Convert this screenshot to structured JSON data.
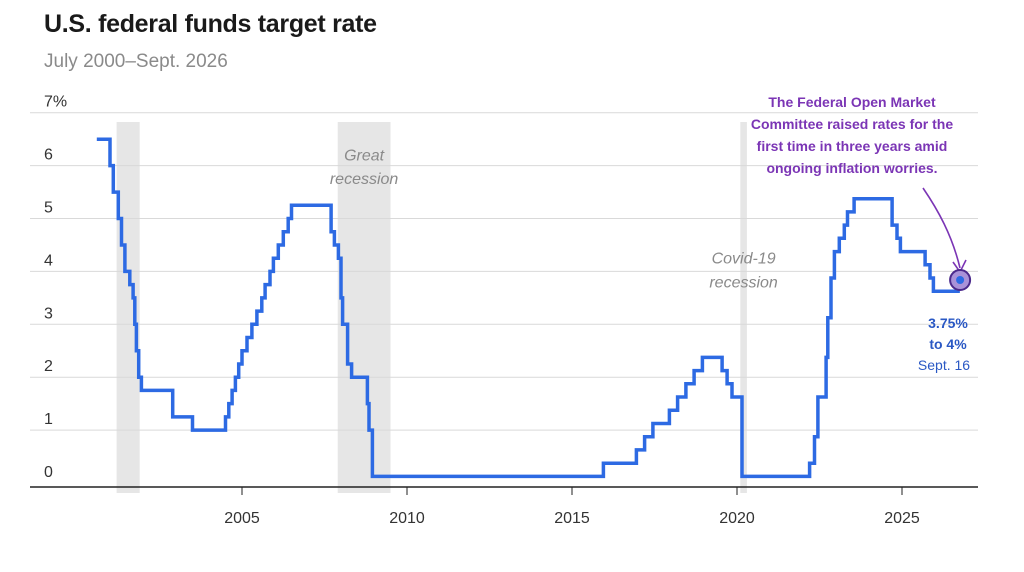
{
  "chart_data": {
    "type": "line",
    "title": "U.S. federal funds target rate",
    "subtitle": "July 2000–Sept. 2026",
    "y_ticks": [
      {
        "value": 7,
        "label": "7%"
      },
      {
        "value": 6,
        "label": "6"
      },
      {
        "value": 5,
        "label": "5"
      },
      {
        "value": 4,
        "label": "4"
      },
      {
        "value": 3,
        "label": "3"
      },
      {
        "value": 2,
        "label": "2"
      },
      {
        "value": 1,
        "label": "1"
      },
      {
        "value": 0,
        "label": "0"
      }
    ],
    "x_ticks": [
      {
        "value": 2005,
        "label": "2005"
      },
      {
        "value": 2010,
        "label": "2010"
      },
      {
        "value": 2015,
        "label": "2015"
      },
      {
        "value": 2020,
        "label": "2020"
      },
      {
        "value": 2025,
        "label": "2025"
      }
    ],
    "xlim": [
      2000.5,
      2027.2
    ],
    "ylim": [
      0,
      7
    ],
    "grid": true,
    "recessions": [
      {
        "start": 2001.2,
        "end": 2001.9,
        "label": [
          "",
          ""
        ]
      },
      {
        "start": 2007.9,
        "end": 2009.5,
        "label": [
          "Great",
          "recession"
        ]
      },
      {
        "start": 2020.1,
        "end": 2020.3,
        "label": [
          "Covid-19",
          "recession"
        ]
      }
    ],
    "series": [
      {
        "color": "#2d6ae3",
        "step": true,
        "points": [
          [
            2000.6,
            6.5
          ],
          [
            2001.0,
            6.0
          ],
          [
            2001.1,
            5.5
          ],
          [
            2001.25,
            5.0
          ],
          [
            2001.35,
            4.5
          ],
          [
            2001.45,
            4.0
          ],
          [
            2001.6,
            3.75
          ],
          [
            2001.7,
            3.5
          ],
          [
            2001.75,
            3.0
          ],
          [
            2001.8,
            2.5
          ],
          [
            2001.87,
            2.0
          ],
          [
            2001.95,
            1.75
          ],
          [
            2002.9,
            1.25
          ],
          [
            2003.5,
            1.0
          ],
          [
            2004.5,
            1.25
          ],
          [
            2004.6,
            1.5
          ],
          [
            2004.7,
            1.75
          ],
          [
            2004.8,
            2.0
          ],
          [
            2004.9,
            2.25
          ],
          [
            2005.0,
            2.5
          ],
          [
            2005.15,
            2.75
          ],
          [
            2005.3,
            3.0
          ],
          [
            2005.45,
            3.25
          ],
          [
            2005.6,
            3.5
          ],
          [
            2005.7,
            3.75
          ],
          [
            2005.85,
            4.0
          ],
          [
            2005.95,
            4.25
          ],
          [
            2006.1,
            4.5
          ],
          [
            2006.25,
            4.75
          ],
          [
            2006.4,
            5.0
          ],
          [
            2006.5,
            5.25
          ],
          [
            2007.7,
            4.75
          ],
          [
            2007.8,
            4.5
          ],
          [
            2007.92,
            4.25
          ],
          [
            2008.0,
            3.5
          ],
          [
            2008.05,
            3.0
          ],
          [
            2008.2,
            2.25
          ],
          [
            2008.32,
            2.0
          ],
          [
            2008.8,
            1.5
          ],
          [
            2008.85,
            1.0
          ],
          [
            2008.95,
            0.125
          ],
          [
            2015.95,
            0.375
          ],
          [
            2016.95,
            0.625
          ],
          [
            2017.2,
            0.875
          ],
          [
            2017.45,
            1.125
          ],
          [
            2017.95,
            1.375
          ],
          [
            2018.2,
            1.625
          ],
          [
            2018.45,
            1.875
          ],
          [
            2018.7,
            2.125
          ],
          [
            2018.95,
            2.375
          ],
          [
            2019.55,
            2.125
          ],
          [
            2019.7,
            1.875
          ],
          [
            2019.85,
            1.625
          ],
          [
            2020.15,
            0.125
          ],
          [
            2022.2,
            0.375
          ],
          [
            2022.35,
            0.875
          ],
          [
            2022.45,
            1.625
          ],
          [
            2022.7,
            2.375
          ],
          [
            2022.75,
            3.125
          ],
          [
            2022.85,
            3.875
          ],
          [
            2022.95,
            4.375
          ],
          [
            2023.1,
            4.625
          ],
          [
            2023.25,
            4.875
          ],
          [
            2023.35,
            5.125
          ],
          [
            2023.55,
            5.375
          ],
          [
            2024.7,
            4.875
          ],
          [
            2024.85,
            4.625
          ],
          [
            2024.95,
            4.375
          ],
          [
            2025.7,
            4.125
          ],
          [
            2025.85,
            3.875
          ],
          [
            2025.95,
            3.625
          ],
          [
            2026.7,
            3.875
          ]
        ]
      }
    ],
    "annotation": {
      "lines": [
        "The Federal Open Market",
        "Committee raised rates for the",
        "first time in three years amid",
        "ongoing inflation worries."
      ],
      "color": "#7b35b5",
      "target": [
        2026.7,
        3.875
      ]
    },
    "current_label": {
      "lines": [
        "3.75%",
        "to 4%"
      ],
      "date": "Sept. 16",
      "color": "#2a58c4"
    }
  }
}
